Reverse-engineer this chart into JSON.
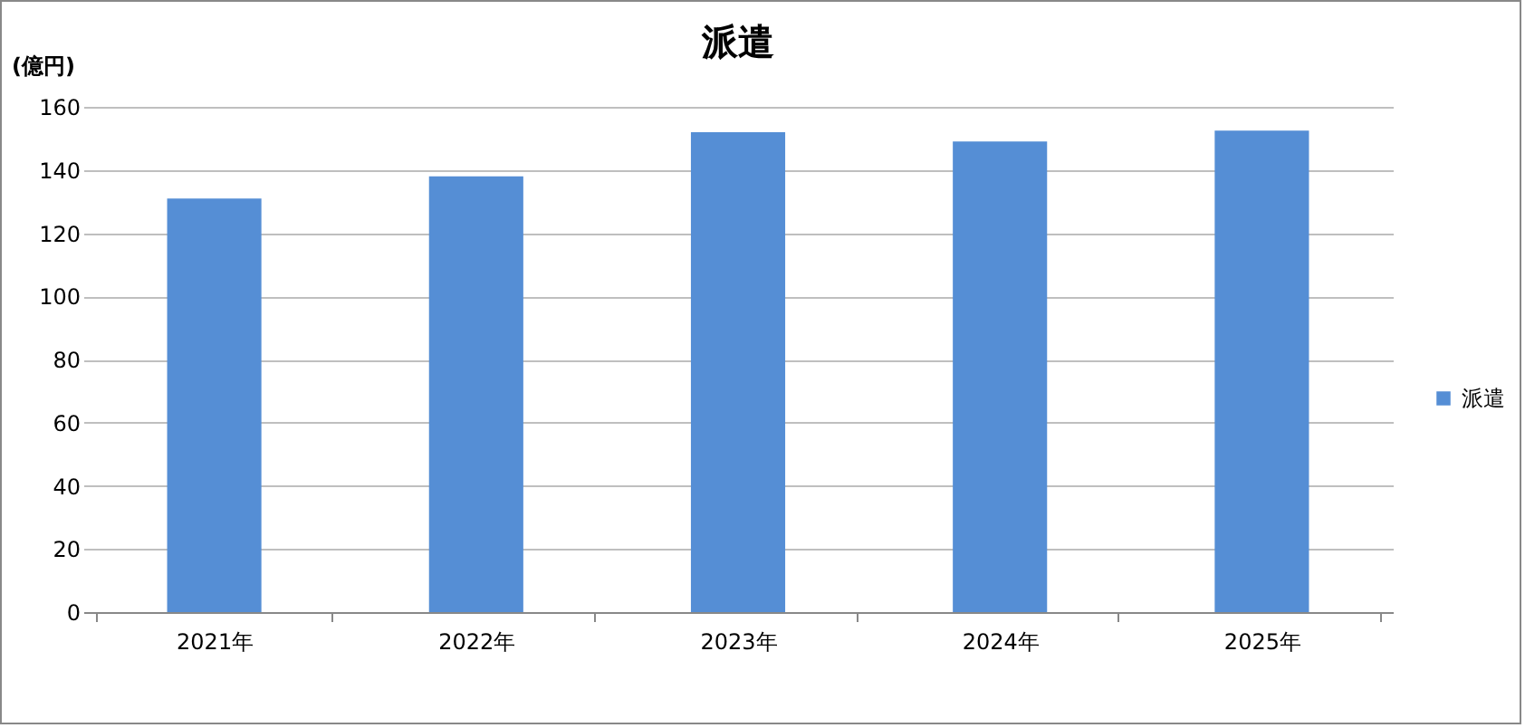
{
  "chart_data": {
    "type": "bar",
    "title": "派遣",
    "ylabel": "(億円)",
    "categories": [
      "2021年",
      "2022年",
      "2023年",
      "2024年",
      "2025年"
    ],
    "series": [
      {
        "name": "派遣",
        "color": "#558ed5",
        "values": [
          131,
          138,
          152,
          149,
          152.5
        ]
      }
    ],
    "ylim": [
      0,
      160
    ],
    "yticks": [
      0,
      20,
      40,
      60,
      80,
      100,
      120,
      140,
      160
    ],
    "grid": "y",
    "legend": "right"
  }
}
